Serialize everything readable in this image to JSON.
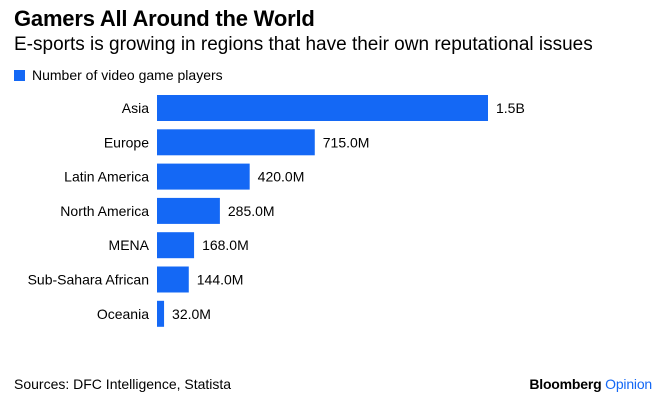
{
  "header": {
    "title": "Gamers All Around the World",
    "subtitle": "E-sports is growing in regions that have their own reputational issues"
  },
  "legend": {
    "label": "Number of video game players",
    "color": "#1468f5"
  },
  "footer": {
    "source": "Sources: DFC Intelligence, Statista",
    "brand_main": "Bloomberg",
    "brand_accent": "Opinion",
    "brand_accent_color": "#1468f5"
  },
  "chart_data": {
    "type": "bar",
    "orientation": "horizontal",
    "categories": [
      "Asia",
      "Europe",
      "Latin America",
      "North America",
      "MENA",
      "Sub-Sahara African",
      "Oceania"
    ],
    "series": [
      {
        "name": "Number of video game players",
        "values": [
          1500,
          715,
          420,
          285,
          168,
          144,
          32
        ],
        "labels": [
          "1.5B",
          "715.0M",
          "420.0M",
          "285.0M",
          "168.0M",
          "144.0M",
          "32.0M"
        ],
        "unit": "millions"
      }
    ],
    "title": "Gamers All Around the World",
    "xlabel": "",
    "ylabel": "",
    "xlim": [
      0,
      1500
    ],
    "grid": false,
    "legend_position": "top-left"
  }
}
